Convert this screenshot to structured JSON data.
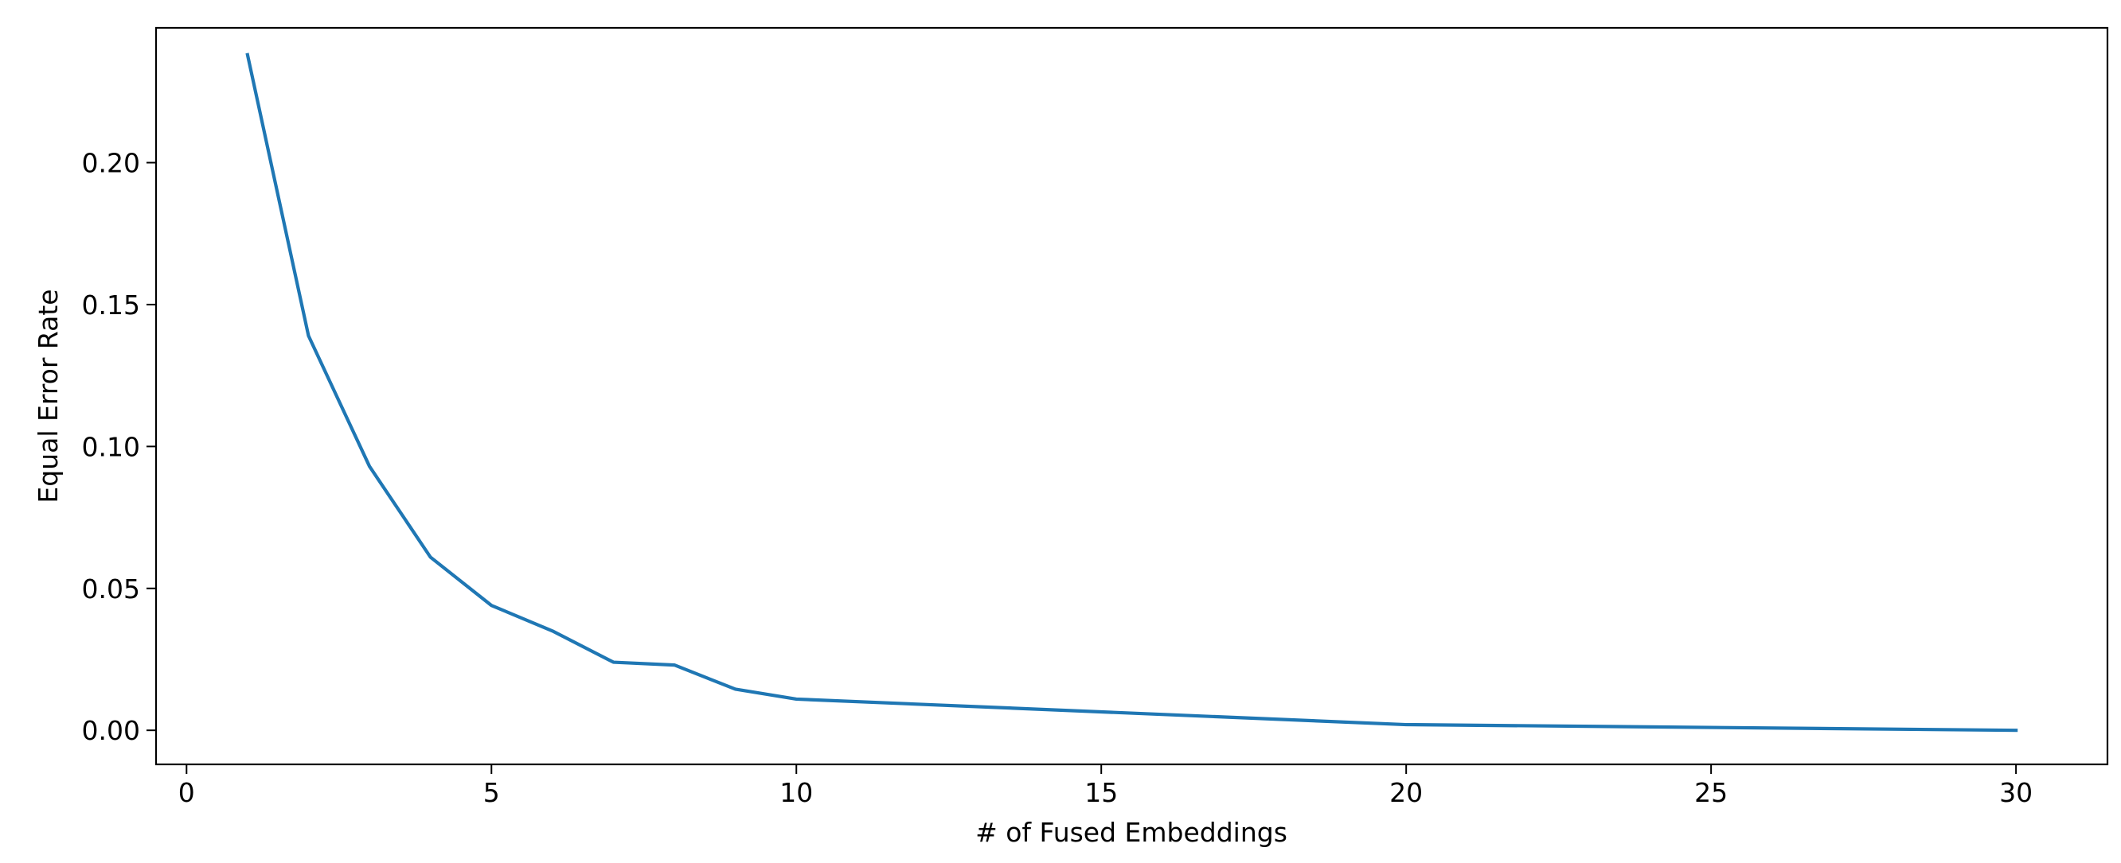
{
  "chart_data": {
    "type": "line",
    "title": "",
    "xlabel": "# of Fused Embeddings",
    "ylabel": "Equal Error Rate",
    "xlim": [
      -0.5,
      31.5
    ],
    "ylim": [
      -0.012,
      0.2475
    ],
    "xticks": [
      0,
      5,
      10,
      15,
      20,
      25,
      30
    ],
    "xtick_labels": [
      "0",
      "5",
      "10",
      "15",
      "20",
      "25",
      "30"
    ],
    "yticks": [
      0.0,
      0.05,
      0.1,
      0.15,
      0.2
    ],
    "ytick_labels": [
      "0.00",
      "0.05",
      "0.10",
      "0.15",
      "0.20"
    ],
    "grid": false,
    "line_color": "#1f77b4",
    "series": [
      {
        "x": [
          1,
          2,
          3,
          4,
          5,
          6,
          7,
          8,
          9,
          10,
          20,
          30
        ],
        "y": [
          0.238,
          0.139,
          0.093,
          0.061,
          0.044,
          0.035,
          0.024,
          0.023,
          0.0145,
          0.011,
          0.002,
          0.0
        ]
      }
    ]
  }
}
